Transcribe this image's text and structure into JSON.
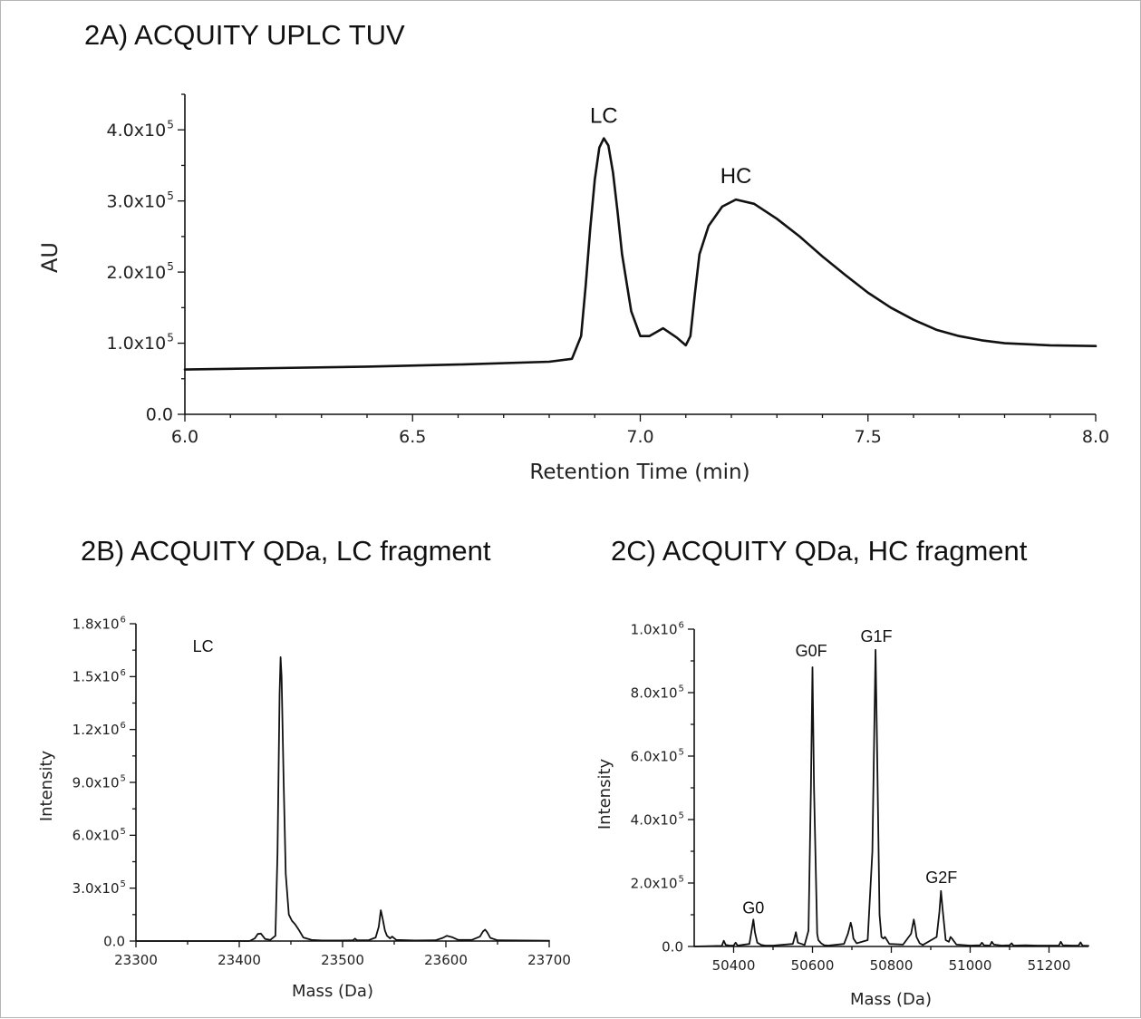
{
  "figure": {
    "panel_a": {
      "title": "2A) ACQUITY UPLC TUV",
      "ylabel": "AU",
      "xlabel": "Retention Time (min)",
      "ytick_labels": [
        {
          "mant": "0.0",
          "exp": ""
        },
        {
          "mant": "1.0x10",
          "exp": "5"
        },
        {
          "mant": "2.0x10",
          "exp": "5"
        },
        {
          "mant": "3.0x10",
          "exp": "5"
        },
        {
          "mant": "4.0x10",
          "exp": "5"
        }
      ],
      "xtick_labels": [
        "6.0",
        "6.5",
        "7.0",
        "7.5",
        "8.0"
      ],
      "annotations": [
        {
          "text": "LC",
          "x": 6.92,
          "y": 410000
        },
        {
          "text": "HC",
          "x": 7.21,
          "y": 325000
        }
      ]
    },
    "panel_b": {
      "title": "2B) ACQUITY QDa, LC fragment",
      "ylabel": "Intensity",
      "xlabel": "Mass (Da)",
      "ytick_labels": [
        {
          "mant": "0.0",
          "exp": ""
        },
        {
          "mant": "3.0x10",
          "exp": "5"
        },
        {
          "mant": "6.0x10",
          "exp": "5"
        },
        {
          "mant": "9.0x10",
          "exp": "5"
        },
        {
          "mant": "1.2x10",
          "exp": "6"
        },
        {
          "mant": "1.5x10",
          "exp": "6"
        },
        {
          "mant": "1.8x10",
          "exp": "6"
        }
      ],
      "xtick_labels": [
        "23300",
        "23400",
        "23500",
        "23600",
        "23700"
      ],
      "annotations": [
        {
          "text": "LC",
          "x": 23365,
          "y": 1640000
        }
      ]
    },
    "panel_c": {
      "title": "2C) ACQUITY QDa, HC fragment",
      "ylabel": "Intensity",
      "xlabel": "Mass (Da)",
      "ytick_labels": [
        {
          "mant": "0.0",
          "exp": ""
        },
        {
          "mant": "2.0x10",
          "exp": "5"
        },
        {
          "mant": "4.0x10",
          "exp": "5"
        },
        {
          "mant": "6.0x10",
          "exp": "5"
        },
        {
          "mant": "8.0x10",
          "exp": "5"
        },
        {
          "mant": "1.0x10",
          "exp": "6"
        }
      ],
      "xtick_labels": [
        "50400",
        "50600",
        "50800",
        "51000",
        "51200"
      ],
      "annotations": [
        {
          "text": "G0",
          "x": 50450,
          "y": 105000
        },
        {
          "text": "G0F",
          "x": 50597,
          "y": 915000
        },
        {
          "text": "G1F",
          "x": 50762,
          "y": 960000
        },
        {
          "text": "G2F",
          "x": 50927,
          "y": 200000
        }
      ]
    }
  },
  "chart_data": [
    {
      "type": "line",
      "title": "2A) ACQUITY UPLC TUV",
      "xlabel": "Retention Time (min)",
      "ylabel": "AU",
      "xlim": [
        6.0,
        8.0
      ],
      "ylim": [
        0,
        450000
      ],
      "xticks": [
        6.0,
        6.5,
        7.0,
        7.5,
        8.0
      ],
      "yticks": [
        0,
        100000,
        200000,
        300000,
        400000
      ],
      "grid": false,
      "series": [
        {
          "x": [
            6.0,
            6.2,
            6.4,
            6.6,
            6.8,
            6.85,
            6.87,
            6.88,
            6.89,
            6.9,
            6.91,
            6.92,
            6.93,
            6.94,
            6.95,
            6.96,
            6.98,
            7.0,
            7.02,
            7.05,
            7.08,
            7.1,
            7.11,
            7.12,
            7.13,
            7.15,
            7.18,
            7.21,
            7.25,
            7.3,
            7.35,
            7.4,
            7.45,
            7.5,
            7.55,
            7.6,
            7.65,
            7.7,
            7.75,
            7.8,
            7.9,
            8.0
          ],
          "y": [
            63000,
            65000,
            67000,
            70000,
            74000,
            78000,
            110000,
            180000,
            260000,
            330000,
            375000,
            388000,
            378000,
            340000,
            285000,
            225000,
            145000,
            110000,
            110000,
            121000,
            108000,
            97000,
            110000,
            170000,
            225000,
            265000,
            292000,
            302000,
            296000,
            275000,
            250000,
            222000,
            196000,
            171000,
            150000,
            133000,
            119000,
            110000,
            104000,
            100000,
            97000,
            96000
          ]
        }
      ]
    },
    {
      "type": "line",
      "title": "2B) ACQUITY QDa, LC fragment",
      "xlabel": "Mass (Da)",
      "ylabel": "Intensity",
      "xlim": [
        23300,
        23700
      ],
      "ylim": [
        0,
        1800000
      ],
      "xticks": [
        23300,
        23400,
        23500,
        23600,
        23700
      ],
      "yticks": [
        0,
        300000,
        600000,
        900000,
        1200000,
        1500000,
        1800000
      ],
      "grid": false,
      "series": [
        {
          "x": [
            23300,
            23410,
            23415,
            23418,
            23421,
            23425,
            23430,
            23435,
            23437,
            23439,
            23440,
            23441,
            23443,
            23445,
            23448,
            23451,
            23454,
            23458,
            23462,
            23470,
            23480,
            23500,
            23510,
            23512,
            23514,
            23525,
            23532,
            23535,
            23537,
            23539,
            23541,
            23543,
            23546,
            23548,
            23552,
            23570,
            23590,
            23597,
            23601,
            23606,
            23612,
            23625,
            23633,
            23636,
            23638,
            23640,
            23643,
            23650,
            23700
          ],
          "y": [
            0,
            0,
            15000,
            40000,
            42000,
            12000,
            6000,
            30000,
            500000,
            1400000,
            1610000,
            1500000,
            900000,
            380000,
            150000,
            115000,
            95000,
            60000,
            20000,
            6000,
            3000,
            3000,
            4000,
            14000,
            4000,
            4000,
            20000,
            80000,
            175000,
            120000,
            60000,
            30000,
            15000,
            25000,
            6000,
            3000,
            4000,
            18000,
            30000,
            22000,
            6000,
            6000,
            25000,
            55000,
            65000,
            50000,
            18000,
            4000,
            2000
          ]
        }
      ]
    },
    {
      "type": "line",
      "title": "2C) ACQUITY QDa, HC fragment",
      "xlabel": "Mass (Da)",
      "ylabel": "Intensity",
      "xlim": [
        50300,
        51300
      ],
      "ylim": [
        0,
        1000000
      ],
      "xticks": [
        50400,
        50600,
        50800,
        51000,
        51200
      ],
      "yticks": [
        0,
        200000,
        400000,
        600000,
        800000,
        1000000
      ],
      "grid": false,
      "series": [
        {
          "x": [
            50300,
            50370,
            50375,
            50380,
            50390,
            50400,
            50405,
            50410,
            50440,
            50447,
            50450,
            50454,
            50460,
            50470,
            50480,
            50500,
            50550,
            50555,
            50558,
            50563,
            50580,
            50590,
            50596,
            50600,
            50604,
            50612,
            50615,
            50622,
            50630,
            50640,
            50680,
            50690,
            50697,
            50700,
            50704,
            50712,
            50740,
            50752,
            50757,
            50760,
            50763,
            50770,
            50775,
            50780,
            50784,
            50795,
            50830,
            50850,
            50857,
            50860,
            50864,
            50872,
            50880,
            50915,
            50922,
            50926,
            50930,
            50938,
            50946,
            50950,
            50954,
            50965,
            51000,
            51025,
            51030,
            51035,
            51050,
            51055,
            51060,
            51080,
            51100,
            51105,
            51110,
            51140,
            51170,
            51225,
            51230,
            51235,
            51260,
            51275,
            51280,
            51285,
            51300
          ],
          "y": [
            0,
            2000,
            18000,
            5000,
            3000,
            3000,
            12000,
            3000,
            8000,
            60000,
            85000,
            45000,
            12000,
            5000,
            3000,
            3000,
            8000,
            30000,
            45000,
            12000,
            5000,
            50000,
            500000,
            880000,
            500000,
            40000,
            20000,
            10000,
            4000,
            3000,
            8000,
            40000,
            75000,
            60000,
            25000,
            10000,
            20000,
            300000,
            700000,
            935000,
            700000,
            100000,
            30000,
            25000,
            30000,
            8000,
            6000,
            40000,
            85000,
            65000,
            30000,
            10000,
            5000,
            30000,
            110000,
            175000,
            120000,
            20000,
            15000,
            30000,
            25000,
            6000,
            3000,
            4000,
            12000,
            4000,
            3000,
            15000,
            6000,
            3000,
            4000,
            10000,
            3000,
            4000,
            3000,
            3000,
            15000,
            4000,
            3000,
            3000,
            13000,
            3000,
            2000
          ]
        }
      ]
    }
  ]
}
